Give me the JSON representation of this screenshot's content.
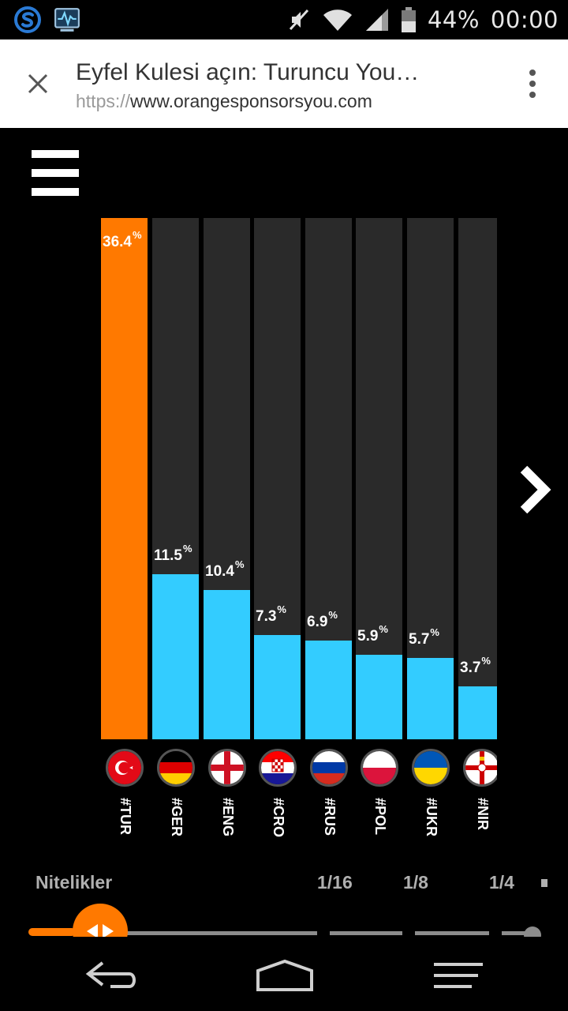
{
  "status_bar": {
    "battery": "44%",
    "time": "00:00",
    "icons": [
      "skype-icon",
      "system-monitor-icon",
      "mute-icon",
      "wifi-icon",
      "signal-icon",
      "battery-icon"
    ]
  },
  "browser": {
    "title": "Eyfel Kulesi açın: Turuncu You…",
    "url_protocol": "https://",
    "url_host": "www.orangesponsorsyou.com",
    "icons": [
      "close-icon",
      "overflow-menu-icon"
    ]
  },
  "colors": {
    "accent": "#ff7900",
    "bar_highlight": "#ff7900",
    "bar_normal": "#33ccff",
    "bar_track": "#2a2a2a"
  },
  "chart_data": {
    "type": "bar",
    "categories": [
      "#TUR",
      "#GER",
      "#ENG",
      "#CRO",
      "#RUS",
      "#POL",
      "#UKR",
      "#NIR"
    ],
    "values": [
      36.4,
      11.5,
      10.4,
      7.3,
      6.9,
      5.9,
      5.7,
      3.7
    ],
    "unit": "%",
    "ylim": [
      0,
      36.4
    ],
    "highlighted": "#TUR",
    "title": "",
    "xlabel": "",
    "ylabel": ""
  },
  "chart_labels": {
    "tur": {
      "value": "36.4",
      "unit": "%"
    },
    "ger": {
      "value": "11.5",
      "unit": "%"
    },
    "eng": {
      "value": "10.4",
      "unit": "%"
    },
    "cro": {
      "value": "7.3",
      "unit": "%"
    },
    "rus": {
      "value": "6.9",
      "unit": "%"
    },
    "pol": {
      "value": "5.9",
      "unit": "%"
    },
    "ukr": {
      "value": "5.7",
      "unit": "%"
    },
    "nir": {
      "value": "3.7",
      "unit": "%"
    }
  },
  "codes": {
    "tur": "#TUR",
    "ger": "#GER",
    "eng": "#ENG",
    "cro": "#CRO",
    "rus": "#RUS",
    "pol": "#POL",
    "ukr": "#UKR",
    "nir": "#NIR"
  },
  "stages": {
    "qualifiers": "Nitelikler",
    "round16": "1/16",
    "round8": "1/8",
    "round4": "1/4",
    "current_stage": "Nitelikler"
  },
  "nav": {
    "icons": [
      "back-icon",
      "home-icon",
      "recent-apps-icon"
    ]
  }
}
